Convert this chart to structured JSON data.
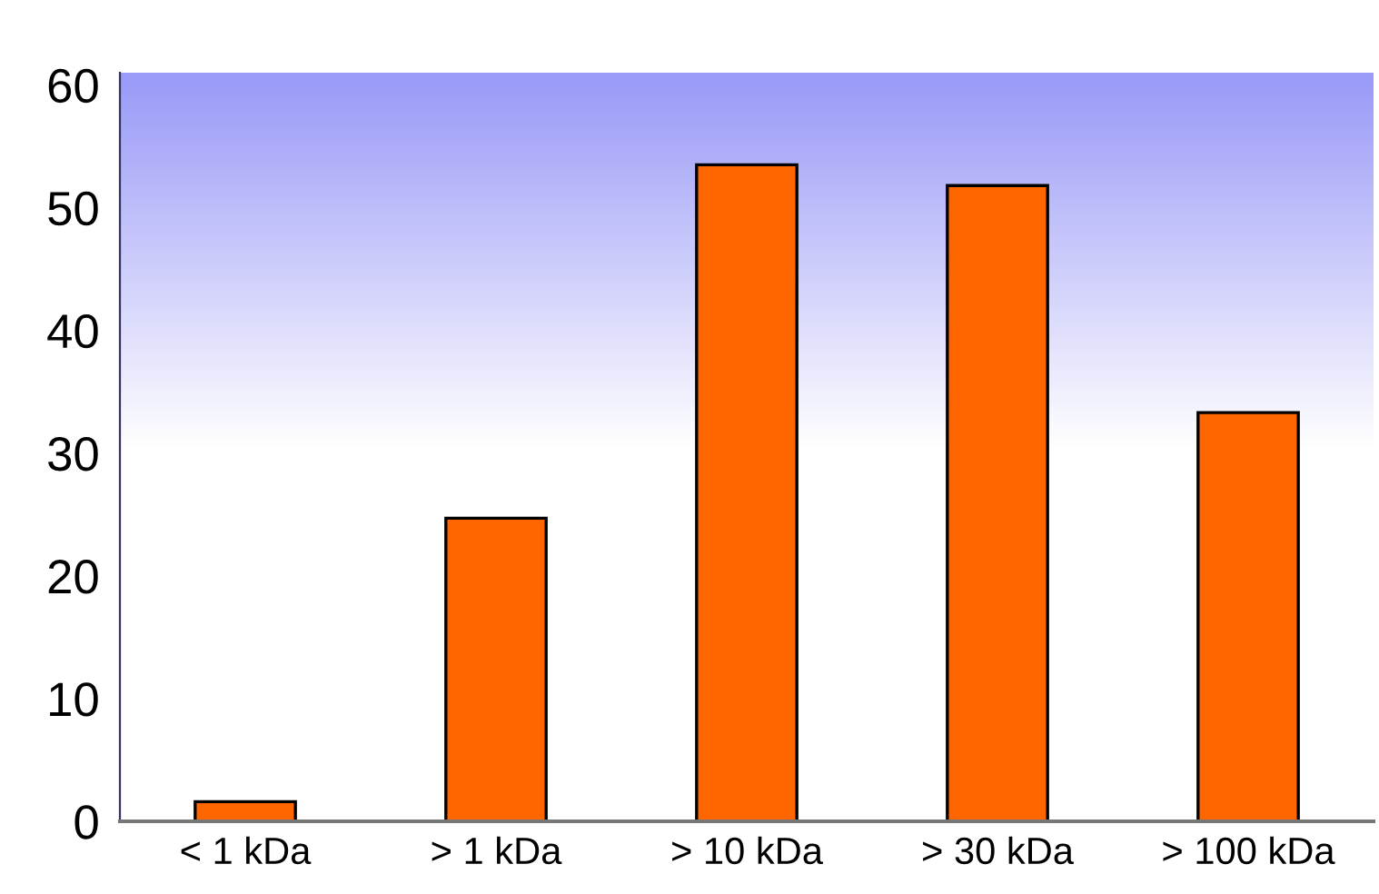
{
  "chart_data": {
    "type": "bar",
    "categories": [
      "< 1 kDa",
      "> 1 kDa",
      "> 10 kDa",
      "> 30 kDa",
      "> 100 kDa"
    ],
    "values": [
      1.6,
      24.7,
      53.5,
      51.8,
      33.3
    ],
    "color": "#ff6600",
    "ylim": [
      0,
      61
    ],
    "yticks": [
      0,
      10,
      20,
      30,
      40,
      50,
      60
    ],
    "grid": false,
    "legend": false
  }
}
